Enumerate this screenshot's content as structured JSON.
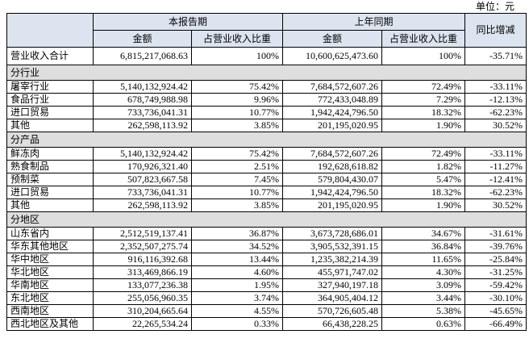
{
  "unit": "单位：元",
  "table": {
    "header": {
      "blank": "",
      "current": "本报告期",
      "previous": "上年同期",
      "change": "同比增减",
      "sub": [
        "金额",
        "占营业收入比重",
        "金额",
        "占营业收入比重"
      ]
    },
    "total": [
      "营业收入合计",
      "6,815,217,068.63",
      "100%",
      "10,600,625,473.60",
      "100%",
      "-35.71%"
    ],
    "groups": [
      {
        "title": "分行业",
        "rows": [
          [
            "屠宰行业",
            "5,140,132,924.42",
            "75.42%",
            "7,684,572,607.26",
            "72.49%",
            "-33.11%"
          ],
          [
            "食品行业",
            "678,749,988.98",
            "9.96%",
            "772,433,048.89",
            "7.29%",
            "-12.13%"
          ],
          [
            "进口贸易",
            "733,736,041.31",
            "10.77%",
            "1,942,424,796.50",
            "18.32%",
            "-62.23%"
          ],
          [
            "其他",
            "262,598,113.92",
            "3.85%",
            "201,195,020.95",
            "1.90%",
            "30.52%"
          ]
        ]
      },
      {
        "title": "分产品",
        "rows": [
          [
            "鲜冻肉",
            "5,140,132,924.42",
            "75.42%",
            "7,684,572,607.26",
            "72.49%",
            "-33.11%"
          ],
          [
            "熟食制品",
            "170,926,321.40",
            "2.51%",
            "192,628,618.82",
            "1.82%",
            "-11.27%"
          ],
          [
            "预制菜",
            "507,823,667.58",
            "7.45%",
            "579,804,430.07",
            "5.47%",
            "-12.41%"
          ],
          [
            "进口贸易",
            "733,736,041.31",
            "10.77%",
            "1,942,424,796.50",
            "18.32%",
            "-62.23%"
          ],
          [
            "其他",
            "262,598,113.92",
            "3.85%",
            "201,195,020.95",
            "1.90%",
            "30.52%"
          ]
        ]
      },
      {
        "title": "分地区",
        "rows": [
          [
            "山东省内",
            "2,512,519,137.41",
            "36.87%",
            "3,673,728,686.01",
            "34.67%",
            "-31.61%"
          ],
          [
            "华东其他地区",
            "2,352,507,275.74",
            "34.52%",
            "3,905,532,391.15",
            "36.84%",
            "-39.76%"
          ],
          [
            "华中地区",
            "916,116,392.68",
            "13.44%",
            "1,235,382,214.39",
            "11.65%",
            "-25.84%"
          ],
          [
            "华北地区",
            "313,469,866.19",
            "4.60%",
            "455,971,747.02",
            "4.30%",
            "-31.25%"
          ],
          [
            "华南地区",
            "133,077,236.38",
            "1.95%",
            "327,940,197.18",
            "3.09%",
            "-59.42%"
          ],
          [
            "东北地区",
            "255,056,960.35",
            "3.74%",
            "364,905,404.12",
            "3.44%",
            "-30.10%"
          ],
          [
            "西南地区",
            "310,204,665.64",
            "4.55%",
            "570,726,605.48",
            "5.38%",
            "-45.65%"
          ],
          [
            "西北地区及其他",
            "22,265,534.24",
            "0.33%",
            "66,438,228.25",
            "0.63%",
            "-66.49%"
          ]
        ]
      }
    ]
  }
}
